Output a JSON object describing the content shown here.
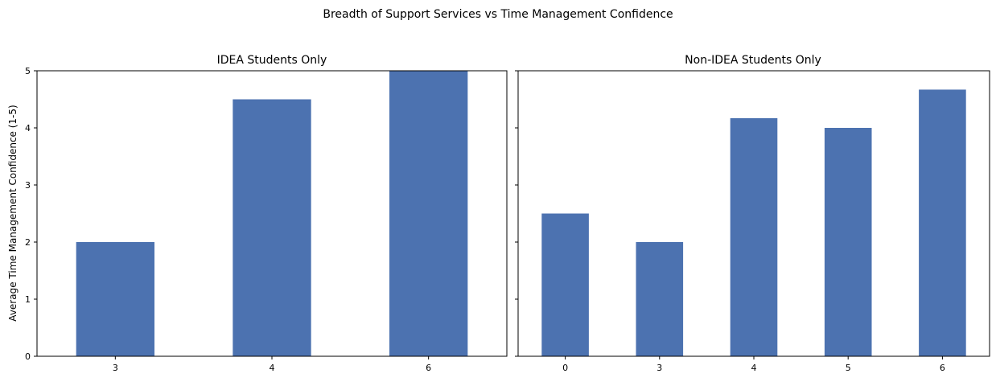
{
  "chart_data": {
    "title": "Breadth of Support Services vs Time Management Confidence",
    "type": "bar",
    "bar_color": "#4c72b0",
    "ylabel": "Average Time Management Confidence (1-5)",
    "ylim": [
      0,
      5
    ],
    "yticks": [
      0,
      1,
      2,
      3,
      4,
      5
    ],
    "panels": [
      {
        "title": "IDEA Students Only",
        "categories": [
          "3",
          "4",
          "6"
        ],
        "values": [
          2.0,
          4.5,
          5.0
        ]
      },
      {
        "title": "Non-IDEA Students Only",
        "categories": [
          "0",
          "3",
          "4",
          "5",
          "6"
        ],
        "values": [
          2.5,
          2.0,
          4.17,
          4.0,
          4.67
        ]
      }
    ]
  }
}
